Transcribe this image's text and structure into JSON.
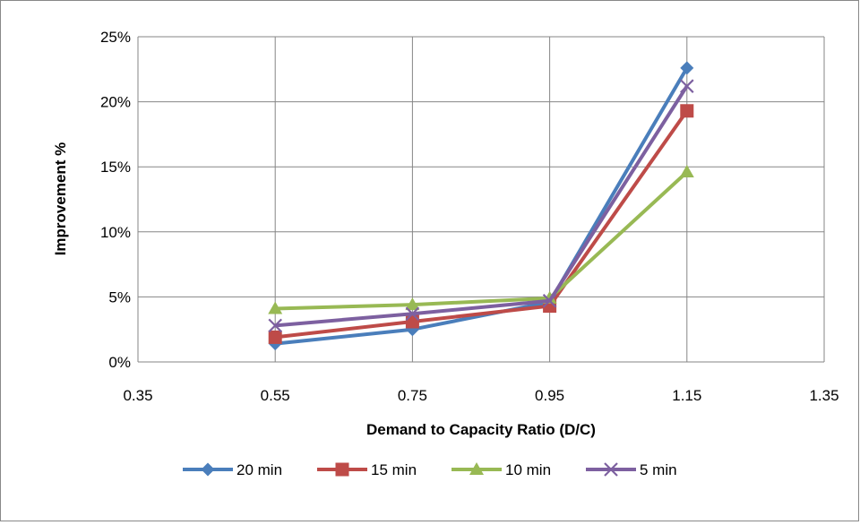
{
  "chart_data": {
    "type": "line",
    "title": "",
    "xlabel": "Demand to Capacity Ratio (D/C)",
    "ylabel": "Improvement %",
    "xlim": [
      0.35,
      1.35
    ],
    "ylim": [
      0,
      25
    ],
    "x_ticks": [
      "0.35",
      "0.55",
      "0.75",
      "0.95",
      "1.15",
      "1.35"
    ],
    "y_ticks": [
      "0%",
      "5%",
      "10%",
      "15%",
      "20%",
      "25%"
    ],
    "grid": true,
    "legend_position": "bottom",
    "series": [
      {
        "name": "20 min",
        "color": "#4A7EBB",
        "marker": "diamond",
        "x": [
          0.55,
          0.75,
          0.95,
          1.15
        ],
        "y": [
          1.4,
          2.5,
          4.6,
          22.6
        ]
      },
      {
        "name": "15 min",
        "color": "#BE4B48",
        "marker": "square",
        "x": [
          0.55,
          0.75,
          0.95,
          1.15
        ],
        "y": [
          1.9,
          3.1,
          4.3,
          19.3
        ]
      },
      {
        "name": "10 min",
        "color": "#98B954",
        "marker": "triangle",
        "x": [
          0.55,
          0.75,
          0.95,
          1.15
        ],
        "y": [
          4.1,
          4.4,
          4.9,
          14.6
        ]
      },
      {
        "name": "5 min",
        "color": "#7D60A0",
        "marker": "x",
        "x": [
          0.55,
          0.75,
          0.95,
          1.15
        ],
        "y": [
          2.8,
          3.7,
          4.7,
          21.2
        ]
      }
    ]
  }
}
